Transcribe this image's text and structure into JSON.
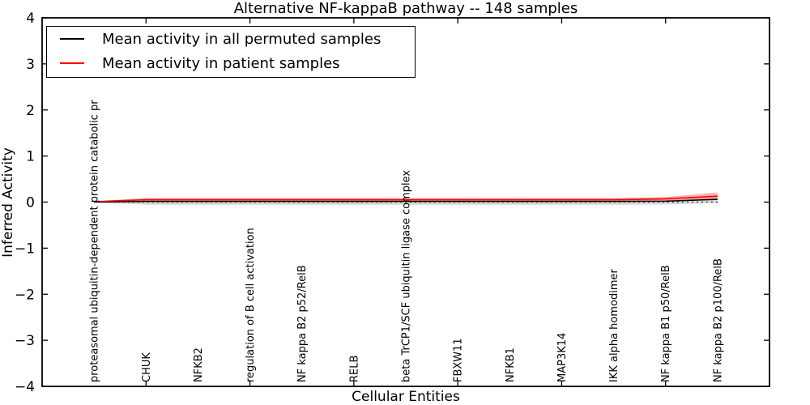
{
  "title": "Alternative NF-kappaB pathway -- 148 samples",
  "legend": {
    "entries": [
      {
        "label": "Mean activity in all permuted samples",
        "color": "#000000"
      },
      {
        "label": "Mean activity in patient samples",
        "color": "#ff0000"
      }
    ]
  },
  "chart_data": {
    "type": "line",
    "title": "Alternative NF-kappaB pathway -- 148 samples",
    "xlabel": "Cellular Entities",
    "ylabel": "Inferred Activity",
    "xlim": [
      0,
      14
    ],
    "ylim": [
      -4,
      4
    ],
    "yticks": [
      -4,
      -3,
      -2,
      -1,
      0,
      1,
      2,
      3,
      4
    ],
    "xticks": [
      2,
      4,
      6,
      8,
      10,
      12
    ],
    "grid": false,
    "legend_position": "upper left",
    "categories": [
      "proteasomal ubiquitin-dependent protein catabolic pr",
      "CHUK",
      "NFKB2",
      "regulation of B cell activation",
      "NF kappa B2 p52/RelB",
      "RELB",
      "beta TrCP1/SCF ubiquitin ligase complex",
      "FBXW11",
      "NFKB1",
      "MAP3K14",
      "IKK alpha homodimer",
      "NF kappa B1 p50/RelB",
      "NF kappa B2 p100/RelB"
    ],
    "x": [
      1,
      2,
      3,
      4,
      5,
      6,
      7,
      8,
      9,
      10,
      11,
      12,
      13
    ],
    "zero_line": {
      "value": 0,
      "style": "dotted",
      "color": "#000000"
    },
    "series": [
      {
        "name": "Mean activity in all permuted samples",
        "color": "#000000",
        "values": [
          0.0,
          0.015,
          0.015,
          0.015,
          0.015,
          0.015,
          0.015,
          0.015,
          0.015,
          0.015,
          0.015,
          0.02,
          0.06
        ],
        "band": {
          "color": "#bfbfbf",
          "opacity": 0.6,
          "upper": [
            0.01,
            0.1,
            0.1,
            0.1,
            0.1,
            0.1,
            0.1,
            0.1,
            0.1,
            0.1,
            0.1,
            0.1,
            0.13
          ],
          "lower": [
            -0.01,
            -0.06,
            -0.06,
            -0.06,
            -0.06,
            -0.06,
            -0.06,
            -0.06,
            -0.06,
            -0.06,
            -0.06,
            -0.05,
            -0.02
          ]
        }
      },
      {
        "name": "Mean activity in patient samples",
        "color": "#ff0000",
        "values": [
          0.01,
          0.05,
          0.05,
          0.05,
          0.05,
          0.05,
          0.05,
          0.05,
          0.05,
          0.05,
          0.05,
          0.07,
          0.13
        ],
        "band": {
          "color": "#ff5555",
          "opacity": 0.45,
          "upper": [
            0.02,
            0.08,
            0.08,
            0.08,
            0.08,
            0.08,
            0.08,
            0.08,
            0.08,
            0.08,
            0.08,
            0.11,
            0.21
          ],
          "lower": [
            0.0,
            0.02,
            0.02,
            0.02,
            0.02,
            0.02,
            0.02,
            0.02,
            0.02,
            0.02,
            0.02,
            0.03,
            0.05
          ]
        }
      }
    ]
  }
}
